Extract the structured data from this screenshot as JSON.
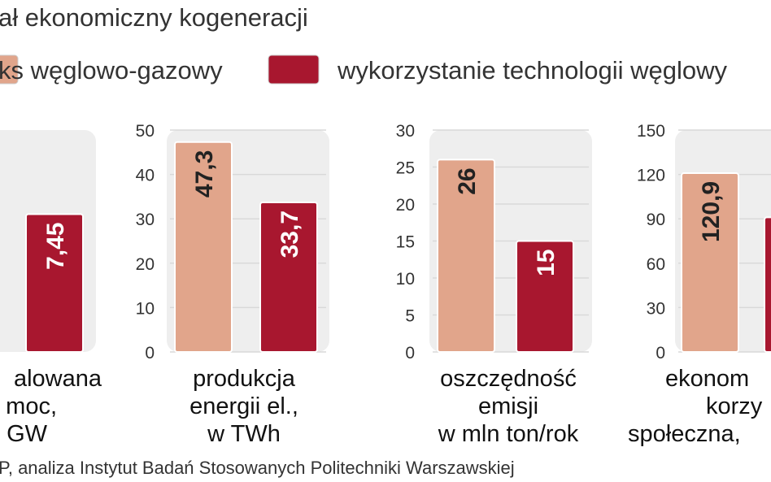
{
  "title": "ał ekonomiczny kogeneracji",
  "source": "P, analiza Instytut Badań Stosowanych Politechniki Warszawskiej",
  "chart_data": [
    {
      "type": "bar",
      "label": [
        "alowana",
        "moc,",
        "GW"
      ],
      "ylim": [
        0,
        12
      ],
      "yticks": [],
      "series": [
        {
          "name": "ks węglowo-gazowy",
          "color": "#e1a58b",
          "values": [
            null
          ],
          "value_labels": [
            null
          ]
        },
        {
          "name": "wykorzystanie technologii węglowy",
          "color": "#a8172f",
          "values": [
            7.45
          ],
          "value_labels": [
            "7,45"
          ]
        }
      ]
    },
    {
      "type": "bar",
      "label": [
        "produkcja",
        "energii el.,",
        "w TWh"
      ],
      "ylim": [
        0,
        50
      ],
      "yticks": [
        0,
        10,
        20,
        30,
        40,
        50
      ],
      "series": [
        {
          "name": "ks węglowo-gazowy",
          "color": "#e1a58b",
          "values": [
            47.3
          ],
          "value_labels": [
            "47,3"
          ]
        },
        {
          "name": "wykorzystanie technologii węglowy",
          "color": "#a8172f",
          "values": [
            33.7
          ],
          "value_labels": [
            "33,7"
          ]
        }
      ]
    },
    {
      "type": "bar",
      "label": [
        "oszczędność",
        "emisji",
        "w mln ton/rok"
      ],
      "ylim": [
        0,
        30
      ],
      "yticks": [
        0,
        5,
        10,
        15,
        20,
        25,
        30
      ],
      "series": [
        {
          "name": "ks węglowo-gazowy",
          "color": "#e1a58b",
          "values": [
            26
          ],
          "value_labels": [
            "26"
          ]
        },
        {
          "name": "wykorzystanie technologii węglowy",
          "color": "#a8172f",
          "values": [
            15
          ],
          "value_labels": [
            "15"
          ]
        }
      ]
    },
    {
      "type": "bar",
      "label": [
        "ekonom",
        "korzy",
        "społeczna,"
      ],
      "ylim": [
        0,
        150
      ],
      "yticks": [
        0,
        30,
        60,
        90,
        120,
        150
      ],
      "series": [
        {
          "name": "ks węglowo-gazowy",
          "color": "#e1a58b",
          "values": [
            120.9
          ],
          "value_labels": [
            "120,9"
          ]
        },
        {
          "name": "wykorzystanie technologii węglowy",
          "color": "#a8172f",
          "values": [
            91
          ],
          "value_labels": [
            null
          ]
        }
      ]
    }
  ]
}
